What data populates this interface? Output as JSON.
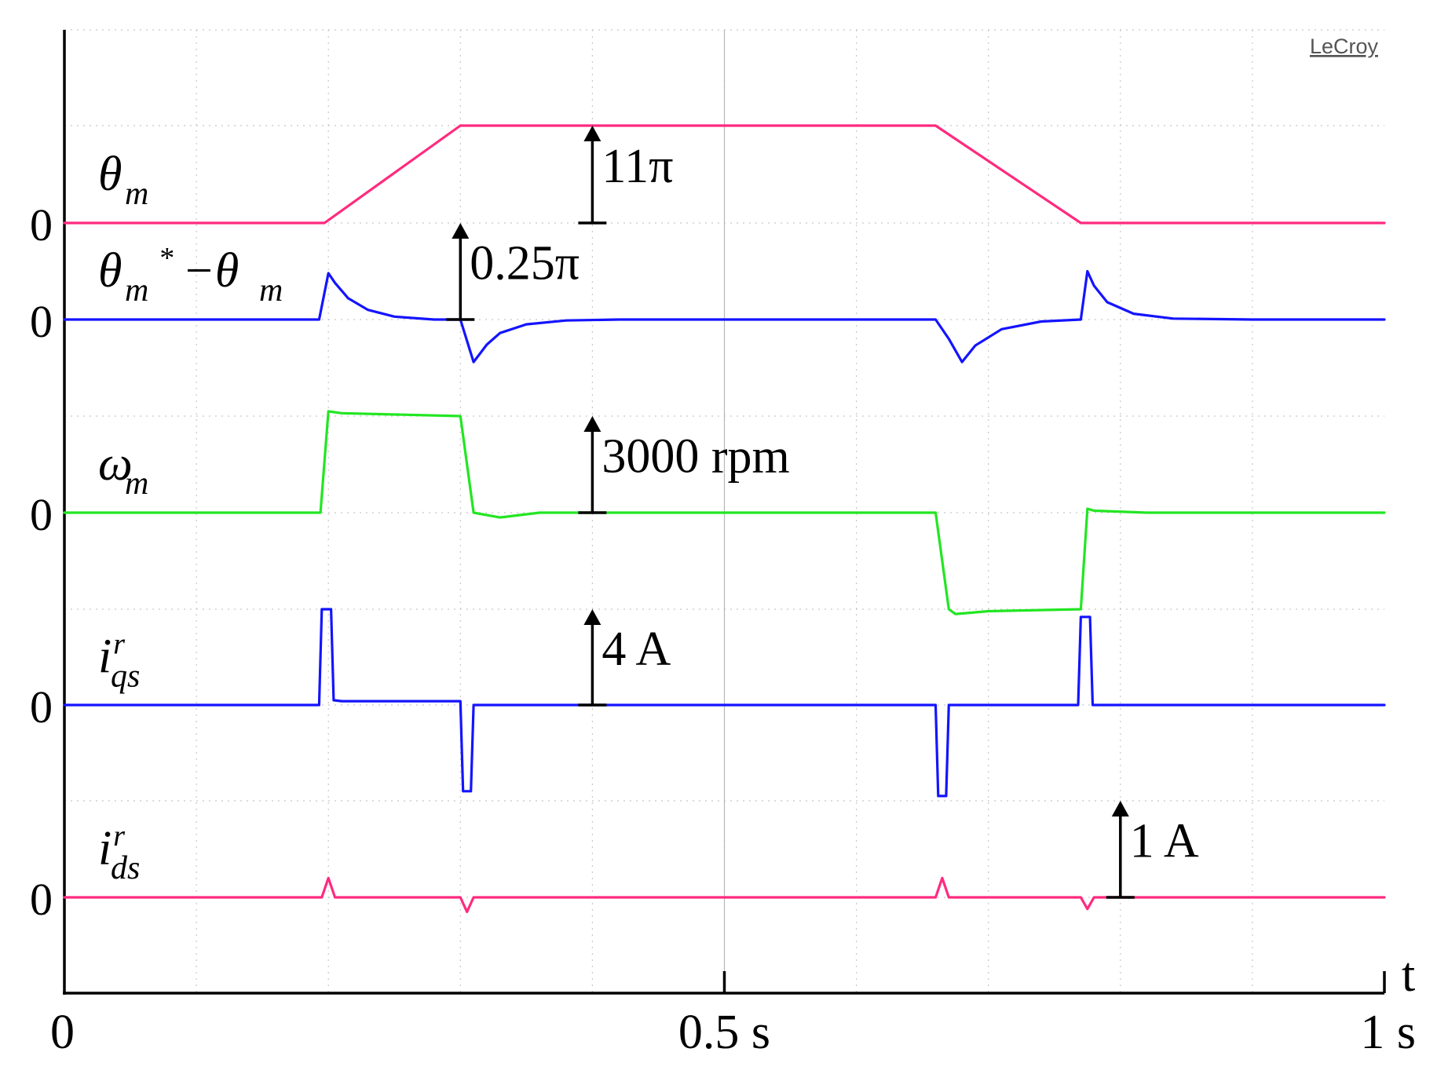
{
  "chart_data": {
    "type": "line",
    "brand": "LeCroy",
    "x_axis": {
      "label": "t",
      "range": [
        0,
        1
      ],
      "ticks": [
        {
          "value": 0,
          "label": "0"
        },
        {
          "value": 0.5,
          "label": "0.5 s"
        },
        {
          "value": 1,
          "label": "1 s"
        }
      ]
    },
    "grid": true,
    "series": [
      {
        "key": "theta",
        "label_main": "θ",
        "label_sub": "m",
        "zero_label": "0",
        "color": "#ff2a7f",
        "scale_label": "11π",
        "scale_x": 0.4,
        "zero_level": 0,
        "scale_level": 1,
        "x": [
          0,
          0.197,
          0.3,
          0.66,
          0.77,
          1
        ],
        "y": [
          0,
          0,
          1,
          1,
          0,
          0
        ]
      },
      {
        "key": "pos_error",
        "label_main": "θ",
        "label_sub": "m",
        "label_sup": "*",
        "label_rest": "−θ",
        "label_rest_sub": "m",
        "zero_label": "0",
        "color": "#1414ff",
        "scale_label": "0.25π",
        "scale_x": 0.3,
        "zero_level": 0,
        "scale_level": 1,
        "x": [
          0,
          0.193,
          0.2,
          0.205,
          0.215,
          0.23,
          0.25,
          0.28,
          0.3,
          0.31,
          0.32,
          0.33,
          0.35,
          0.38,
          0.42,
          0.5,
          0.66,
          0.67,
          0.68,
          0.69,
          0.71,
          0.74,
          0.77,
          0.775,
          0.78,
          0.79,
          0.81,
          0.84,
          0.9,
          1
        ],
        "y": [
          0,
          0,
          0.48,
          0.38,
          0.22,
          0.1,
          0.03,
          0,
          0,
          -0.44,
          -0.26,
          -0.14,
          -0.05,
          -0.01,
          0,
          0,
          0,
          -0.2,
          -0.44,
          -0.27,
          -0.1,
          -0.02,
          0,
          0.5,
          0.35,
          0.18,
          0.06,
          0.01,
          0,
          0
        ]
      },
      {
        "key": "omega",
        "label_main": "ω",
        "label_sub": "m",
        "zero_label": "0",
        "color": "#22e622",
        "scale_label": "3000 rpm",
        "scale_x": 0.4,
        "zero_level": 0,
        "scale_level": 1,
        "x": [
          0,
          0.194,
          0.2,
          0.21,
          0.3,
          0.31,
          0.33,
          0.36,
          0.4,
          0.66,
          0.67,
          0.675,
          0.7,
          0.77,
          0.775,
          0.78,
          0.82,
          1
        ],
        "y": [
          0,
          0,
          1.05,
          1.03,
          1.0,
          0,
          -0.05,
          0,
          0,
          0,
          -1.0,
          -1.05,
          -1.02,
          -1.0,
          0.04,
          0.02,
          0,
          0
        ]
      },
      {
        "key": "iqs",
        "label_main": "i",
        "label_sub": "qs",
        "label_sup": "r",
        "zero_label": "0",
        "color": "#1414ff",
        "scale_label": "4 A",
        "scale_x": 0.4,
        "zero_level": 0,
        "scale_level": 1,
        "x": [
          0,
          0.193,
          0.195,
          0.202,
          0.204,
          0.21,
          0.3,
          0.302,
          0.308,
          0.31,
          0.66,
          0.662,
          0.668,
          0.67,
          0.768,
          0.77,
          0.777,
          0.779,
          1
        ],
        "y": [
          0,
          0,
          1.0,
          1.0,
          0.05,
          0.04,
          0.04,
          -0.9,
          -0.9,
          0,
          0,
          -0.95,
          -0.95,
          0,
          0,
          0.92,
          0.92,
          0,
          0
        ]
      },
      {
        "key": "ids",
        "label_main": "i",
        "label_sub": "ds",
        "label_sup": "r",
        "zero_label": "0",
        "color": "#ff2a7f",
        "scale_label": "1 A",
        "scale_x": 0.8,
        "zero_level": 0,
        "scale_level": 1,
        "x": [
          0,
          0.195,
          0.2,
          0.205,
          0.3,
          0.305,
          0.31,
          0.66,
          0.665,
          0.67,
          0.77,
          0.775,
          0.78,
          1
        ],
        "y": [
          0,
          0,
          0.2,
          0,
          0,
          -0.15,
          0,
          0,
          0.2,
          0,
          0,
          -0.12,
          0,
          0
        ]
      }
    ]
  }
}
